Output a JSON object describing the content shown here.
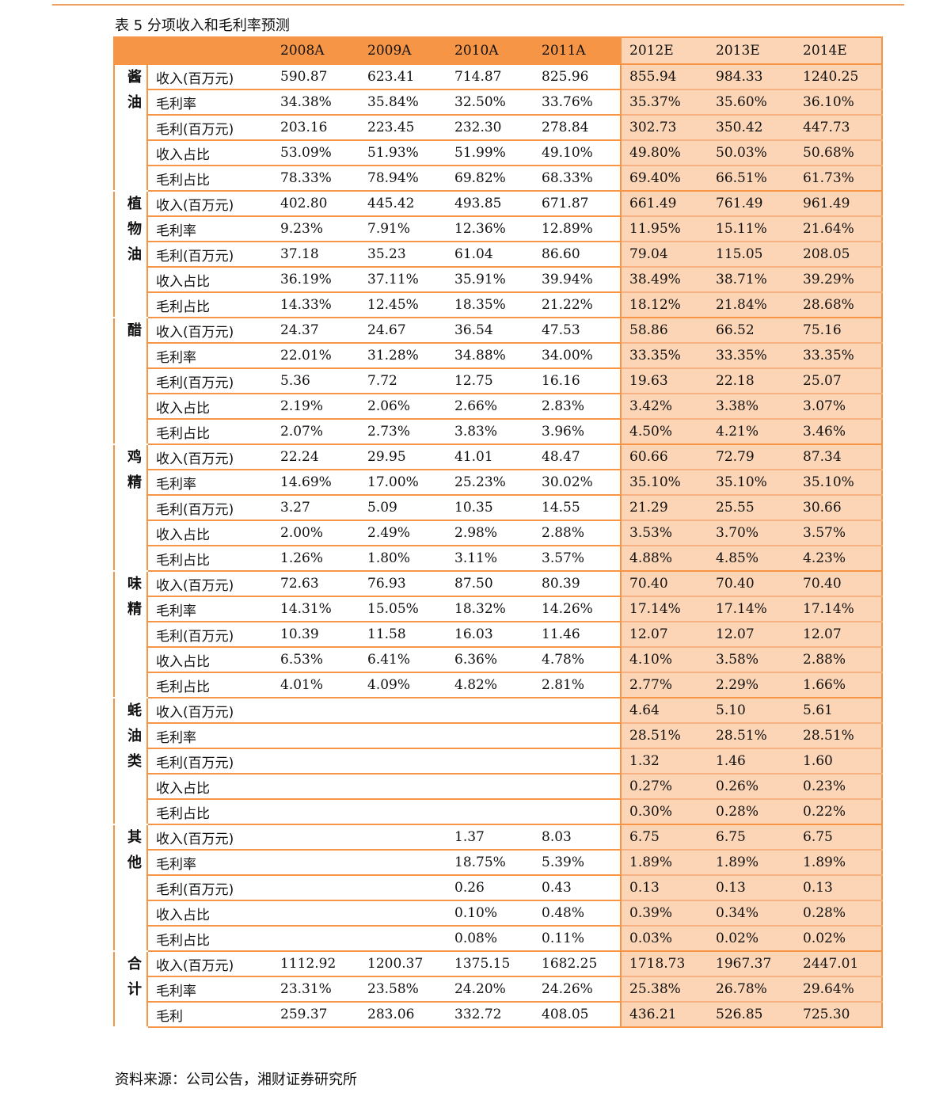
{
  "caption": "表 5 分项收入和毛利率预测",
  "source": "资料来源：公司公告，湘财证券研究所",
  "colors": {
    "accent": "#f79546",
    "estimate_bg": "#fbd5b5",
    "top_rule": "#f0a060"
  },
  "columns": [
    "2008A",
    "2009A",
    "2010A",
    "2011A",
    "2012E",
    "2013E",
    "2014E"
  ],
  "segments": [
    {
      "name": "酱油",
      "rows": [
        {
          "metric": "收入(百万元)",
          "values": [
            "590.87",
            "623.41",
            "714.87",
            "825.96",
            "855.94",
            "984.33",
            "1240.25"
          ]
        },
        {
          "metric": "毛利率",
          "values": [
            "34.38%",
            "35.84%",
            "32.50%",
            "33.76%",
            "35.37%",
            "35.60%",
            "36.10%"
          ]
        },
        {
          "metric": "毛利(百万元)",
          "values": [
            "203.16",
            "223.45",
            "232.30",
            "278.84",
            "302.73",
            "350.42",
            "447.73"
          ]
        },
        {
          "metric": "收入占比",
          "values": [
            "53.09%",
            "51.93%",
            "51.99%",
            "49.10%",
            "49.80%",
            "50.03%",
            "50.68%"
          ]
        },
        {
          "metric": "毛利占比",
          "values": [
            "78.33%",
            "78.94%",
            "69.82%",
            "68.33%",
            "69.40%",
            "66.51%",
            "61.73%"
          ]
        }
      ]
    },
    {
      "name": "植物油",
      "rows": [
        {
          "metric": "收入(百万元)",
          "values": [
            "402.80",
            "445.42",
            "493.85",
            "671.87",
            "661.49",
            "761.49",
            "961.49"
          ]
        },
        {
          "metric": "毛利率",
          "values": [
            "9.23%",
            "7.91%",
            "12.36%",
            "12.89%",
            "11.95%",
            "15.11%",
            "21.64%"
          ]
        },
        {
          "metric": "毛利(百万元)",
          "values": [
            "37.18",
            "35.23",
            "61.04",
            "86.60",
            "79.04",
            "115.05",
            "208.05"
          ]
        },
        {
          "metric": "收入占比",
          "values": [
            "36.19%",
            "37.11%",
            "35.91%",
            "39.94%",
            "38.49%",
            "38.71%",
            "39.29%"
          ]
        },
        {
          "metric": "毛利占比",
          "values": [
            "14.33%",
            "12.45%",
            "18.35%",
            "21.22%",
            "18.12%",
            "21.84%",
            "28.68%"
          ]
        }
      ]
    },
    {
      "name": "醋",
      "rows": [
        {
          "metric": "收入(百万元)",
          "values": [
            "24.37",
            "24.67",
            "36.54",
            "47.53",
            "58.86",
            "66.52",
            "75.16"
          ]
        },
        {
          "metric": "毛利率",
          "values": [
            "22.01%",
            "31.28%",
            "34.88%",
            "34.00%",
            "33.35%",
            "33.35%",
            "33.35%"
          ]
        },
        {
          "metric": "毛利(百万元)",
          "values": [
            "5.36",
            "7.72",
            "12.75",
            "16.16",
            "19.63",
            "22.18",
            "25.07"
          ]
        },
        {
          "metric": "收入占比",
          "values": [
            "2.19%",
            "2.06%",
            "2.66%",
            "2.83%",
            "3.42%",
            "3.38%",
            "3.07%"
          ]
        },
        {
          "metric": "毛利占比",
          "values": [
            "2.07%",
            "2.73%",
            "3.83%",
            "3.96%",
            "4.50%",
            "4.21%",
            "3.46%"
          ]
        }
      ]
    },
    {
      "name": "鸡精",
      "rows": [
        {
          "metric": "收入(百万元)",
          "values": [
            "22.24",
            "29.95",
            "41.01",
            "48.47",
            "60.66",
            "72.79",
            "87.34"
          ]
        },
        {
          "metric": "毛利率",
          "values": [
            "14.69%",
            "17.00%",
            "25.23%",
            "30.02%",
            "35.10%",
            "35.10%",
            "35.10%"
          ]
        },
        {
          "metric": "毛利(百万元)",
          "values": [
            "3.27",
            "5.09",
            "10.35",
            "14.55",
            "21.29",
            "25.55",
            "30.66"
          ]
        },
        {
          "metric": "收入占比",
          "values": [
            "2.00%",
            "2.49%",
            "2.98%",
            "2.88%",
            "3.53%",
            "3.70%",
            "3.57%"
          ]
        },
        {
          "metric": "毛利占比",
          "values": [
            "1.26%",
            "1.80%",
            "3.11%",
            "3.57%",
            "4.88%",
            "4.85%",
            "4.23%"
          ]
        }
      ]
    },
    {
      "name": "味精",
      "rows": [
        {
          "metric": "收入(百万元)",
          "values": [
            "72.63",
            "76.93",
            "87.50",
            "80.39",
            "70.40",
            "70.40",
            "70.40"
          ]
        },
        {
          "metric": "毛利率",
          "values": [
            "14.31%",
            "15.05%",
            "18.32%",
            "14.26%",
            "17.14%",
            "17.14%",
            "17.14%"
          ]
        },
        {
          "metric": "毛利(百万元)",
          "values": [
            "10.39",
            "11.58",
            "16.03",
            "11.46",
            "12.07",
            "12.07",
            "12.07"
          ]
        },
        {
          "metric": "收入占比",
          "values": [
            "6.53%",
            "6.41%",
            "6.36%",
            "4.78%",
            "4.10%",
            "3.58%",
            "2.88%"
          ]
        },
        {
          "metric": "毛利占比",
          "values": [
            "4.01%",
            "4.09%",
            "4.82%",
            "2.81%",
            "2.77%",
            "2.29%",
            "1.66%"
          ]
        }
      ]
    },
    {
      "name": "蚝油类",
      "rows": [
        {
          "metric": "收入(百万元)",
          "values": [
            "",
            "",
            "",
            "",
            "4.64",
            "5.10",
            "5.61"
          ]
        },
        {
          "metric": "毛利率",
          "values": [
            "",
            "",
            "",
            "",
            "28.51%",
            "28.51%",
            "28.51%"
          ]
        },
        {
          "metric": "毛利(百万元)",
          "values": [
            "",
            "",
            "",
            "",
            "1.32",
            "1.46",
            "1.60"
          ]
        },
        {
          "metric": "收入占比",
          "values": [
            "",
            "",
            "",
            "",
            "0.27%",
            "0.26%",
            "0.23%"
          ]
        },
        {
          "metric": "毛利占比",
          "values": [
            "",
            "",
            "",
            "",
            "0.30%",
            "0.28%",
            "0.22%"
          ]
        }
      ]
    },
    {
      "name": "其他",
      "rows": [
        {
          "metric": "收入(百万元)",
          "values": [
            "",
            "",
            "1.37",
            "8.03",
            "6.75",
            "6.75",
            "6.75"
          ]
        },
        {
          "metric": "毛利率",
          "values": [
            "",
            "",
            "18.75%",
            "5.39%",
            "1.89%",
            "1.89%",
            "1.89%"
          ]
        },
        {
          "metric": "毛利(百万元)",
          "values": [
            "",
            "",
            "0.26",
            "0.43",
            "0.13",
            "0.13",
            "0.13"
          ]
        },
        {
          "metric": "收入占比",
          "values": [
            "",
            "",
            "0.10%",
            "0.48%",
            "0.39%",
            "0.34%",
            "0.28%"
          ]
        },
        {
          "metric": "毛利占比",
          "values": [
            "",
            "",
            "0.08%",
            "0.11%",
            "0.03%",
            "0.02%",
            "0.02%"
          ]
        }
      ]
    },
    {
      "name": "合计",
      "rows": [
        {
          "metric": "收入(百万元)",
          "values": [
            "1112.92",
            "1200.37",
            "1375.15",
            "1682.25",
            "1718.73",
            "1967.37",
            "2447.01"
          ]
        },
        {
          "metric": "毛利率",
          "values": [
            "23.31%",
            "23.58%",
            "24.20%",
            "24.26%",
            "25.38%",
            "26.78%",
            "29.64%"
          ]
        },
        {
          "metric": "毛利",
          "values": [
            "259.37",
            "283.06",
            "332.72",
            "408.05",
            "436.21",
            "526.85",
            "725.30"
          ]
        }
      ]
    }
  ]
}
